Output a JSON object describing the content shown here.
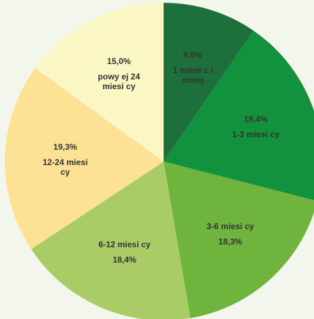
{
  "chart_data": {
    "type": "pie",
    "categories": [
      "1 miesi c i mniej",
      "1-3 miesi cy",
      "3-6 miesi cy",
      "6-12 miesi cy",
      "12-24 miesi cy",
      "powy ej 24 miesi cy"
    ],
    "values": [
      9.6,
      19.4,
      18.3,
      18.4,
      19.3,
      15.0
    ],
    "value_labels": [
      "9,6%",
      "19,4%",
      "18,3%",
      "18,4%",
      "19,3%",
      "15,0%"
    ],
    "colors": [
      "#1d6f3b",
      "#12923d",
      "#6fb43c",
      "#a9cc66",
      "#fde295",
      "#fbf7c4"
    ]
  }
}
